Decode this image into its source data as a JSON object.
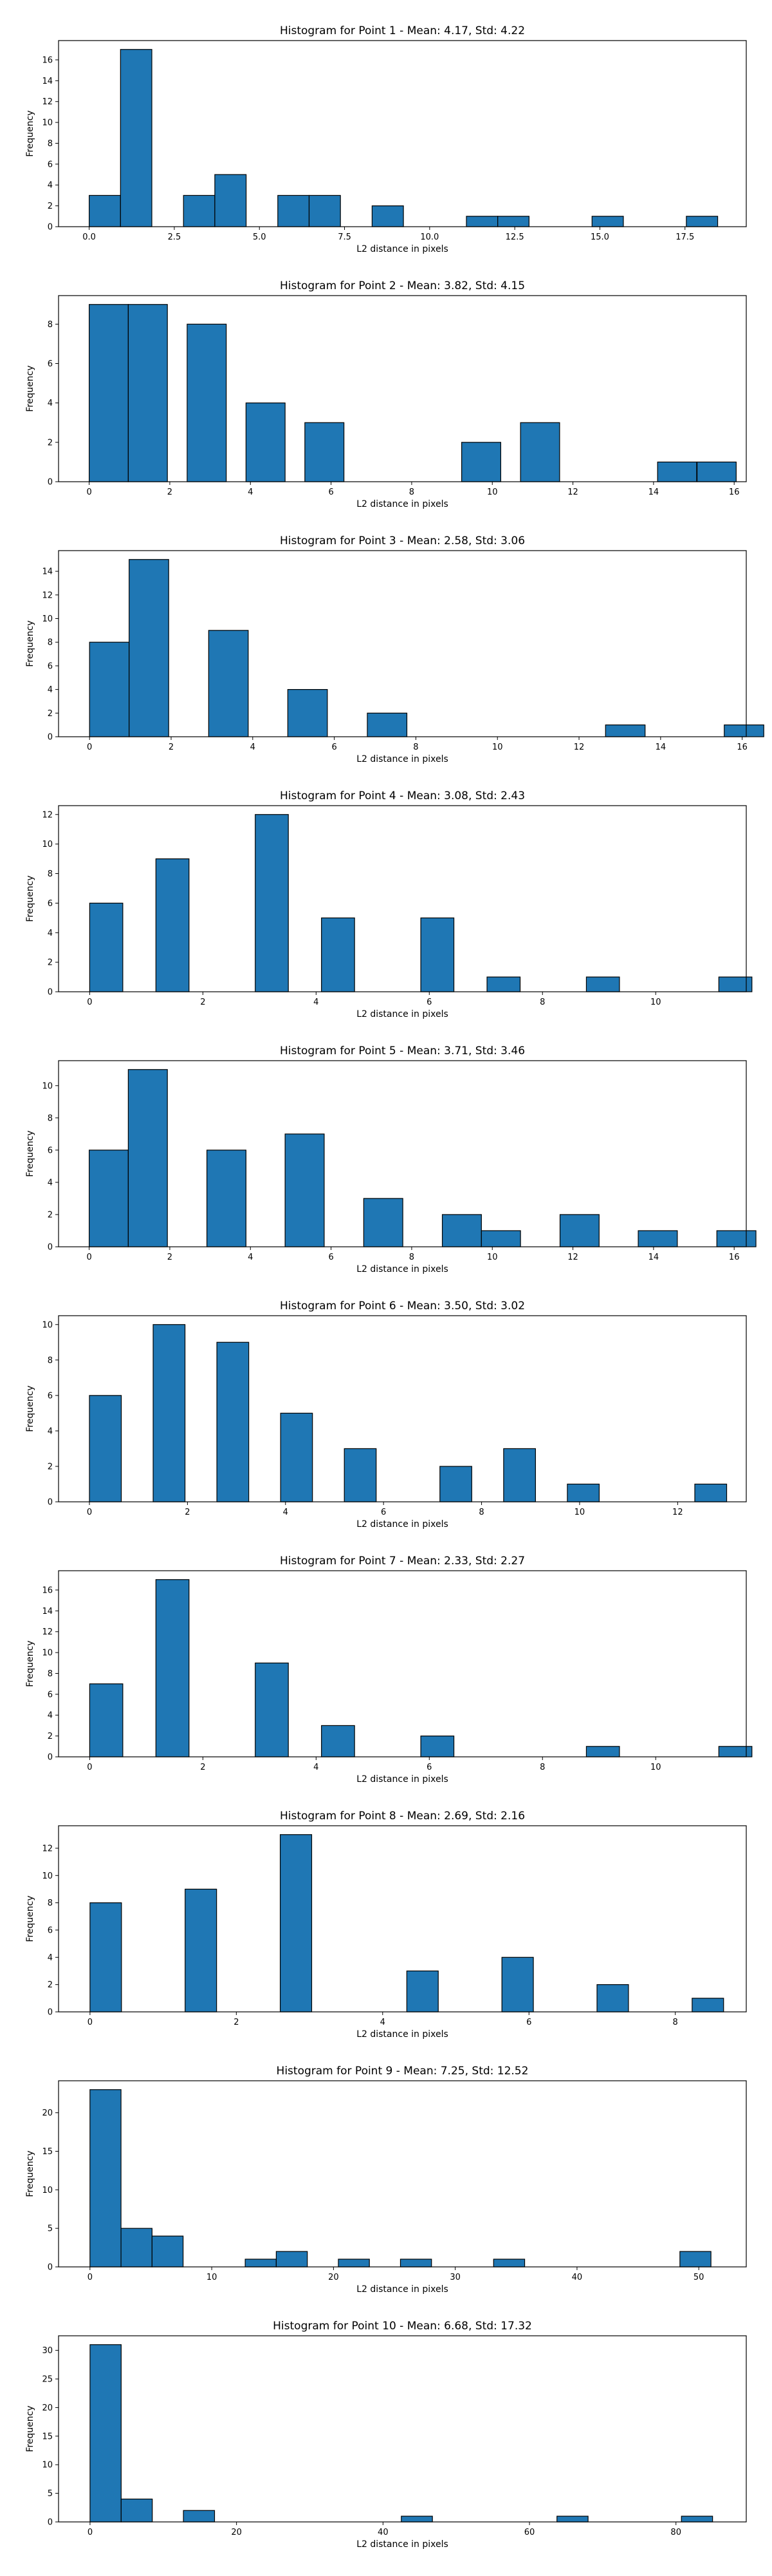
{
  "chart_data": [
    {
      "type": "bar",
      "title": "Histogram for Point 1 - Mean: 4.17, Std: 4.22",
      "xlabel": "L2 distance in pixels",
      "ylabel": "Frequency",
      "xlim": [
        -0.9,
        19.3
      ],
      "ylim": [
        0,
        17.85
      ],
      "xticks": [
        0.0,
        2.5,
        5.0,
        7.5,
        10.0,
        12.5,
        15.0,
        17.5
      ],
      "xtick_labels": [
        "0.0",
        "2.5",
        "5.0",
        "7.5",
        "10.0",
        "12.5",
        "15.0",
        "17.5"
      ],
      "yticks": [
        0,
        2,
        4,
        6,
        8,
        10,
        12,
        14,
        16
      ],
      "bin_width": 0.92,
      "bins": [
        {
          "x0": 0.0,
          "value": 3
        },
        {
          "x0": 0.92,
          "value": 17
        },
        {
          "x0": 2.77,
          "value": 3
        },
        {
          "x0": 3.69,
          "value": 5
        },
        {
          "x0": 5.54,
          "value": 3
        },
        {
          "x0": 6.46,
          "value": 3
        },
        {
          "x0": 8.31,
          "value": 2
        },
        {
          "x0": 11.08,
          "value": 1
        },
        {
          "x0": 12.0,
          "value": 1
        },
        {
          "x0": 14.77,
          "value": 1
        },
        {
          "x0": 17.54,
          "value": 1
        }
      ]
    },
    {
      "type": "bar",
      "title": "Histogram for Point 2 - Mean: 3.82, Std: 4.15",
      "xlabel": "L2 distance in pixels",
      "ylabel": "Frequency",
      "xlim": [
        -0.76,
        16.3
      ],
      "ylim": [
        0,
        9.45
      ],
      "xticks": [
        0,
        2,
        4,
        6,
        8,
        10,
        12,
        14,
        16
      ],
      "xtick_labels": [
        "0",
        "2",
        "4",
        "6",
        "8",
        "10",
        "12",
        "14",
        "16"
      ],
      "yticks": [
        0,
        2,
        4,
        6,
        8
      ],
      "bin_width": 0.97,
      "bins": [
        {
          "x0": 0.0,
          "value": 9
        },
        {
          "x0": 0.97,
          "value": 9
        },
        {
          "x0": 2.43,
          "value": 8
        },
        {
          "x0": 3.89,
          "value": 4
        },
        {
          "x0": 5.35,
          "value": 3
        },
        {
          "x0": 9.24,
          "value": 2
        },
        {
          "x0": 10.7,
          "value": 3
        },
        {
          "x0": 14.1,
          "value": 1
        },
        {
          "x0": 15.08,
          "value": 1
        }
      ]
    },
    {
      "type": "bar",
      "title": "Histogram for Point 3 - Mean: 2.58, Std: 3.06",
      "xlabel": "L2 distance in pixels",
      "ylabel": "Frequency",
      "xlim": [
        -0.76,
        16.1
      ],
      "ylim": [
        0,
        15.75
      ],
      "xticks": [
        0,
        2,
        4,
        6,
        8,
        10,
        12,
        14,
        16
      ],
      "xtick_labels": [
        "0",
        "2",
        "4",
        "6",
        "8",
        "10",
        "12",
        "14",
        "16"
      ],
      "yticks": [
        0,
        2,
        4,
        6,
        8,
        10,
        12,
        14
      ],
      "bin_width": 0.97,
      "bins": [
        {
          "x0": 0.0,
          "value": 8
        },
        {
          "x0": 0.97,
          "value": 15
        },
        {
          "x0": 2.92,
          "value": 9
        },
        {
          "x0": 4.86,
          "value": 4
        },
        {
          "x0": 6.81,
          "value": 2
        },
        {
          "x0": 15.56,
          "value": 1
        },
        {
          "x0": 12.65,
          "value": 1
        }
      ]
    },
    {
      "type": "bar",
      "title": "Histogram for Point 4 - Mean: 3.08, Std: 2.43",
      "xlabel": "L2 distance in pixels",
      "ylabel": "Frequency",
      "xlim": [
        -0.55,
        11.6
      ],
      "ylim": [
        0,
        12.6
      ],
      "xticks": [
        0,
        2,
        4,
        6,
        8,
        10
      ],
      "xtick_labels": [
        "0",
        "2",
        "4",
        "6",
        "8",
        "10"
      ],
      "yticks": [
        0,
        2,
        4,
        6,
        8,
        10,
        12
      ],
      "bin_width": 0.585,
      "bins": [
        {
          "x0": 0.0,
          "value": 6
        },
        {
          "x0": 1.17,
          "value": 9
        },
        {
          "x0": 2.925,
          "value": 12
        },
        {
          "x0": 4.095,
          "value": 5
        },
        {
          "x0": 5.85,
          "value": 5
        },
        {
          "x0": 7.02,
          "value": 1
        },
        {
          "x0": 8.775,
          "value": 1
        },
        {
          "x0": 11.115,
          "value": 1
        }
      ]
    },
    {
      "type": "bar",
      "title": "Histogram for Point 5 - Mean: 3.71, Std: 3.46",
      "xlabel": "L2 distance in pixels",
      "ylabel": "Frequency",
      "xlim": [
        -0.76,
        16.3
      ],
      "ylim": [
        0,
        11.55
      ],
      "xticks": [
        0,
        2,
        4,
        6,
        8,
        10,
        12,
        14,
        16
      ],
      "xtick_labels": [
        "0",
        "2",
        "4",
        "6",
        "8",
        "10",
        "12",
        "14",
        "16"
      ],
      "yticks": [
        0,
        2,
        4,
        6,
        8,
        10
      ],
      "bin_width": 0.97,
      "bins": [
        {
          "x0": 0.0,
          "value": 6
        },
        {
          "x0": 0.97,
          "value": 11
        },
        {
          "x0": 2.92,
          "value": 6
        },
        {
          "x0": 4.86,
          "value": 7
        },
        {
          "x0": 6.81,
          "value": 3
        },
        {
          "x0": 8.76,
          "value": 2
        },
        {
          "x0": 9.73,
          "value": 1
        },
        {
          "x0": 11.68,
          "value": 2
        },
        {
          "x0": 13.62,
          "value": 1
        },
        {
          "x0": 15.57,
          "value": 1
        }
      ]
    },
    {
      "type": "bar",
      "title": "Histogram for Point 6 - Mean: 3.50, Std: 3.02",
      "xlabel": "L2 distance in pixels",
      "ylabel": "Frequency",
      "xlim": [
        -0.63,
        13.4
      ],
      "ylim": [
        0,
        10.5
      ],
      "xticks": [
        0,
        2,
        4,
        6,
        8,
        10,
        12
      ],
      "xtick_labels": [
        "0",
        "2",
        "4",
        "6",
        "8",
        "10",
        "12"
      ],
      "yticks": [
        0,
        2,
        4,
        6,
        8,
        10
      ],
      "bin_width": 0.65,
      "bins": [
        {
          "x0": 0.0,
          "value": 6
        },
        {
          "x0": 1.3,
          "value": 10
        },
        {
          "x0": 2.6,
          "value": 9
        },
        {
          "x0": 3.9,
          "value": 5
        },
        {
          "x0": 5.2,
          "value": 3
        },
        {
          "x0": 7.15,
          "value": 2
        },
        {
          "x0": 8.45,
          "value": 3
        },
        {
          "x0": 9.75,
          "value": 1
        },
        {
          "x0": 12.35,
          "value": 1
        }
      ]
    },
    {
      "type": "bar",
      "title": "Histogram for Point 7 - Mean: 2.33, Std: 2.27",
      "xlabel": "L2 distance in pixels",
      "ylabel": "Frequency",
      "xlim": [
        -0.55,
        11.6
      ],
      "ylim": [
        0,
        17.85
      ],
      "xticks": [
        0,
        2,
        4,
        6,
        8,
        10
      ],
      "xtick_labels": [
        "0",
        "2",
        "4",
        "6",
        "8",
        "10"
      ],
      "yticks": [
        0,
        2,
        4,
        6,
        8,
        10,
        12,
        14,
        16
      ],
      "bin_width": 0.585,
      "bins": [
        {
          "x0": 0.0,
          "value": 7
        },
        {
          "x0": 1.17,
          "value": 17
        },
        {
          "x0": 2.925,
          "value": 9
        },
        {
          "x0": 4.095,
          "value": 3
        },
        {
          "x0": 5.85,
          "value": 2
        },
        {
          "x0": 8.775,
          "value": 1
        },
        {
          "x0": 11.115,
          "value": 1
        }
      ]
    },
    {
      "type": "bar",
      "title": "Histogram for Point 8 - Mean: 2.69, Std: 2.16",
      "xlabel": "L2 distance in pixels",
      "ylabel": "Frequency",
      "xlim": [
        -0.43,
        8.97
      ],
      "ylim": [
        0,
        13.65
      ],
      "xticks": [
        0,
        2,
        4,
        6,
        8
      ],
      "xtick_labels": [
        "0",
        "2",
        "4",
        "6",
        "8"
      ],
      "yticks": [
        0,
        2,
        4,
        6,
        8,
        10,
        12
      ],
      "bin_width": 0.43,
      "bins": [
        {
          "x0": 0.0,
          "value": 8
        },
        {
          "x0": 1.3,
          "value": 9
        },
        {
          "x0": 2.6,
          "value": 13
        },
        {
          "x0": 4.33,
          "value": 3
        },
        {
          "x0": 5.63,
          "value": 4
        },
        {
          "x0": 6.93,
          "value": 2
        },
        {
          "x0": 8.23,
          "value": 1
        }
      ]
    },
    {
      "type": "bar",
      "title": "Histogram for Point 9 - Mean: 7.25, Std: 12.52",
      "xlabel": "L2 distance in pixels",
      "ylabel": "Frequency",
      "xlim": [
        -2.58,
        53.9
      ],
      "ylim": [
        0,
        24.15
      ],
      "xticks": [
        0,
        10,
        20,
        30,
        40,
        50
      ],
      "xtick_labels": [
        "0",
        "10",
        "20",
        "30",
        "40",
        "50"
      ],
      "yticks": [
        0,
        5,
        10,
        15,
        20
      ],
      "bin_width": 2.55,
      "bins": [
        {
          "x0": 0.0,
          "value": 23
        },
        {
          "x0": 2.55,
          "value": 5
        },
        {
          "x0": 5.1,
          "value": 4
        },
        {
          "x0": 12.75,
          "value": 1
        },
        {
          "x0": 15.3,
          "value": 2
        },
        {
          "x0": 20.4,
          "value": 1
        },
        {
          "x0": 25.5,
          "value": 1
        },
        {
          "x0": 33.15,
          "value": 1
        },
        {
          "x0": 48.45,
          "value": 2
        }
      ]
    },
    {
      "type": "bar",
      "title": "Histogram for Point 10 - Mean: 6.68, Std: 17.32",
      "xlabel": "L2 distance in pixels",
      "ylabel": "Frequency",
      "xlim": [
        -4.3,
        89.6
      ],
      "ylim": [
        0,
        32.55
      ],
      "xticks": [
        0,
        20,
        40,
        60,
        80
      ],
      "xtick_labels": [
        "0",
        "20",
        "40",
        "60",
        "80"
      ],
      "yticks": [
        0,
        5,
        10,
        15,
        20,
        25,
        30
      ],
      "bin_width": 4.25,
      "bins": [
        {
          "x0": 0.0,
          "value": 31
        },
        {
          "x0": 4.25,
          "value": 4
        },
        {
          "x0": 12.75,
          "value": 2
        },
        {
          "x0": 42.5,
          "value": 1
        },
        {
          "x0": 63.75,
          "value": 1
        },
        {
          "x0": 80.75,
          "value": 1
        }
      ]
    }
  ],
  "colors": {
    "bar_fill": "#1f77b4",
    "bar_edge": "#000000",
    "axes": "#000000",
    "background": "#ffffff"
  }
}
